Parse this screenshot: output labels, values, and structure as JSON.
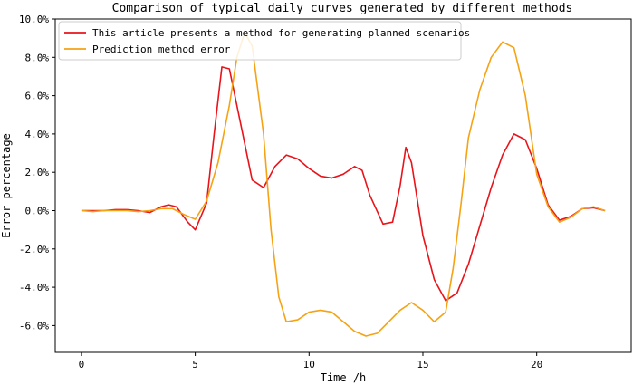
{
  "chart_data": {
    "type": "line",
    "title": "Comparison of typical daily curves generated by different methods",
    "xlabel": "Time /h",
    "ylabel": "Error percentage",
    "xlim": [
      -1.15,
      24.15
    ],
    "ylim": [
      -7.4,
      10.0
    ],
    "xticks": [
      0,
      5,
      10,
      15,
      20
    ],
    "xtick_labels": [
      "0",
      "5",
      "10",
      "15",
      "20"
    ],
    "yticks": [
      -6,
      -4,
      -2,
      0,
      2,
      4,
      6,
      8,
      10
    ],
    "ytick_labels": [
      "-6.0%",
      "-4.0%",
      "-2.0%",
      "0.0%",
      "2.0%",
      "4.0%",
      "6.0%",
      "8.0%",
      "10.0%"
    ],
    "grid": false,
    "legend_position": "top-left",
    "series": [
      {
        "name": "This article presents a method for generating planned scenarios",
        "color": "#e8141b",
        "x": [
          0,
          0.5,
          1,
          1.5,
          2,
          2.5,
          3,
          3.5,
          3.83,
          4.17,
          4.67,
          5,
          5.5,
          5.83,
          6.17,
          6.5,
          7,
          7.5,
          8,
          8.5,
          9,
          9.5,
          10,
          10.5,
          11,
          11.5,
          12,
          12.33,
          12.67,
          13.25,
          13.67,
          14,
          14.25,
          14.5,
          15,
          15.5,
          16,
          16.5,
          17,
          17.5,
          18,
          18.5,
          19,
          19.5,
          20,
          20.5,
          21,
          21.5,
          22,
          22.5,
          23
        ],
        "y": [
          0,
          0,
          0,
          0.05,
          0.05,
          0,
          -0.1,
          0.2,
          0.3,
          0.2,
          -0.6,
          -1.0,
          0.4,
          4.0,
          7.5,
          7.4,
          4.5,
          1.6,
          1.2,
          2.3,
          2.9,
          2.7,
          2.2,
          1.8,
          1.7,
          1.9,
          2.3,
          2.1,
          0.8,
          -0.7,
          -0.6,
          1.3,
          3.3,
          2.5,
          -1.3,
          -3.6,
          -4.7,
          -4.3,
          -2.8,
          -0.8,
          1.2,
          2.9,
          4.0,
          3.7,
          2.2,
          0.3,
          -0.5,
          -0.3,
          0.1,
          0.15,
          0.0
        ]
      },
      {
        "name": "Prediction method error",
        "color": "#f5a314",
        "x": [
          0,
          0.5,
          1,
          1.5,
          2,
          2.5,
          3,
          3.5,
          4,
          4.5,
          5,
          5.5,
          6,
          6.5,
          6.83,
          7.17,
          7.5,
          8,
          8.33,
          8.67,
          9,
          9.5,
          10,
          10.5,
          11,
          11.5,
          12,
          12.5,
          13,
          13.5,
          14,
          14.5,
          15,
          15.5,
          16,
          16.33,
          16.67,
          17,
          17.5,
          18,
          18.5,
          19,
          19.5,
          20,
          20.5,
          21,
          21.5,
          22,
          22.5,
          23
        ],
        "y": [
          0,
          -0.05,
          0,
          0,
          0,
          -0.05,
          0,
          0.1,
          0.1,
          -0.2,
          -0.45,
          0.5,
          2.5,
          5.5,
          8.0,
          9.3,
          8.6,
          4.0,
          -1.0,
          -4.5,
          -5.8,
          -5.7,
          -5.3,
          -5.2,
          -5.3,
          -5.8,
          -6.3,
          -6.55,
          -6.4,
          -5.8,
          -5.2,
          -4.8,
          -5.2,
          -5.8,
          -5.3,
          -3.0,
          0.3,
          3.8,
          6.3,
          8.0,
          8.8,
          8.5,
          6.0,
          1.9,
          0.2,
          -0.6,
          -0.35,
          0.1,
          0.2,
          0.0
        ]
      }
    ]
  }
}
